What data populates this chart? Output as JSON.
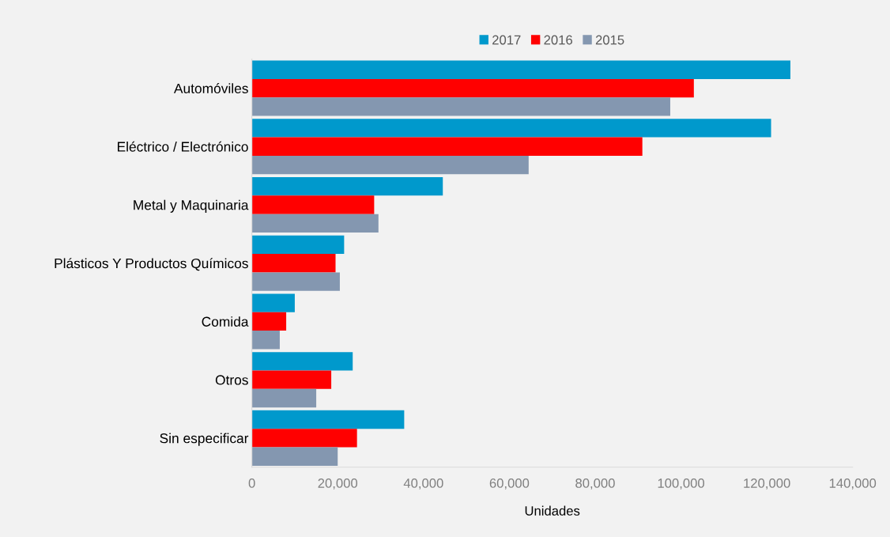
{
  "chart_data": {
    "type": "bar",
    "orientation": "horizontal",
    "xlabel": "Unidades",
    "categories": [
      "Automóviles",
      "Eléctrico / Electrónico",
      "Metal y Maquinaria",
      "Plásticos Y Productos Químicos",
      "Comida",
      "Otros",
      "Sin especificar"
    ],
    "series": [
      {
        "name": "2017",
        "color": "#0099cc",
        "values": [
          125500,
          121000,
          44500,
          21500,
          10000,
          23500,
          35500
        ]
      },
      {
        "name": "2016",
        "color": "#ff0000",
        "values": [
          103000,
          91000,
          28500,
          19500,
          8000,
          18500,
          24500
        ]
      },
      {
        "name": "2015",
        "color": "#8497b0",
        "values": [
          97500,
          64500,
          29500,
          20500,
          6500,
          15000,
          20000
        ]
      }
    ],
    "xlim": [
      0,
      140000
    ],
    "xticks": [
      {
        "value": 0,
        "label": "0"
      },
      {
        "value": 20000,
        "label": "20,000"
      },
      {
        "value": 40000,
        "label": "40,000"
      },
      {
        "value": 60000,
        "label": "60,000"
      },
      {
        "value": 80000,
        "label": "80,000"
      },
      {
        "value": 100000,
        "label": "100,000"
      },
      {
        "value": 120000,
        "label": "120,000"
      },
      {
        "value": 140000,
        "label": "140,000"
      }
    ],
    "grid": false,
    "legend": "top"
  }
}
